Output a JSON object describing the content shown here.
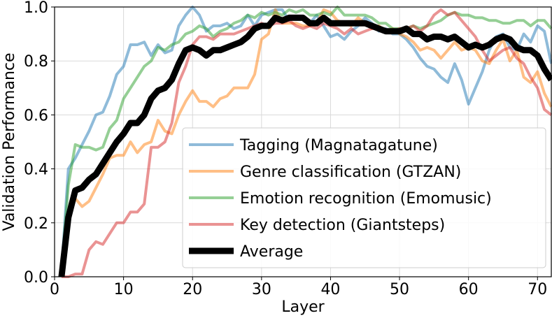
{
  "chart_data": {
    "type": "line",
    "title": "",
    "xlabel": "Layer",
    "ylabel": "Validation Performance",
    "xlim": [
      0,
      72
    ],
    "ylim": [
      0.0,
      1.0
    ],
    "xticks": [
      0,
      10,
      20,
      30,
      40,
      50,
      60,
      70
    ],
    "yticks": [
      0.0,
      0.2,
      0.4,
      0.6,
      0.8,
      1.0
    ],
    "xtick_labels": [
      "0",
      "10",
      "20",
      "30",
      "40",
      "50",
      "60",
      "70"
    ],
    "ytick_labels": [
      "0.0",
      "0.2",
      "0.4",
      "0.6",
      "0.8",
      "1.0"
    ],
    "grid": true,
    "legend_position": "lower-right",
    "x": [
      1,
      2,
      3,
      4,
      5,
      6,
      7,
      8,
      9,
      10,
      11,
      12,
      13,
      14,
      15,
      16,
      17,
      18,
      19,
      20,
      21,
      22,
      23,
      24,
      25,
      26,
      27,
      28,
      29,
      30,
      31,
      32,
      33,
      34,
      35,
      36,
      37,
      38,
      39,
      40,
      41,
      42,
      43,
      44,
      45,
      46,
      47,
      48,
      49,
      50,
      51,
      52,
      53,
      54,
      55,
      56,
      57,
      58,
      59,
      60,
      61,
      62,
      63,
      64,
      65,
      66,
      67,
      68,
      69,
      70,
      71,
      72
    ],
    "series": [
      {
        "name": "Tagging (Magnatagatune)",
        "color": "#1f77b4",
        "opacity": 0.5,
        "width": 4,
        "values": [
          0.02,
          0.4,
          0.44,
          0.49,
          0.54,
          0.6,
          0.61,
          0.67,
          0.75,
          0.78,
          0.86,
          0.86,
          0.87,
          0.82,
          0.86,
          0.83,
          0.84,
          0.93,
          0.97,
          1.0,
          0.97,
          0.91,
          0.93,
          0.93,
          0.94,
          0.92,
          0.93,
          0.97,
          0.93,
          0.97,
          0.98,
          0.99,
          0.99,
          0.95,
          0.96,
          0.96,
          0.94,
          0.97,
          0.93,
          0.89,
          0.9,
          0.88,
          0.91,
          0.93,
          0.96,
          0.94,
          0.91,
          0.92,
          0.9,
          0.9,
          0.88,
          0.85,
          0.81,
          0.78,
          0.77,
          0.74,
          0.72,
          0.79,
          0.73,
          0.64,
          0.7,
          0.76,
          0.84,
          0.89,
          0.9,
          0.85,
          0.84,
          0.9,
          0.87,
          0.93,
          0.91,
          0.79
        ]
      },
      {
        "name": "Genre classification (GTZAN)",
        "color": "#ff7f0e",
        "opacity": 0.5,
        "width": 4,
        "values": [
          0.02,
          0.22,
          0.29,
          0.26,
          0.28,
          0.33,
          0.38,
          0.44,
          0.45,
          0.45,
          0.5,
          0.46,
          0.49,
          0.5,
          0.58,
          0.54,
          0.53,
          0.6,
          0.65,
          0.69,
          0.65,
          0.65,
          0.63,
          0.66,
          0.67,
          0.7,
          0.7,
          0.7,
          0.75,
          0.88,
          0.9,
          0.99,
          0.94,
          0.94,
          0.94,
          0.93,
          0.93,
          0.94,
          0.99,
          0.98,
          0.95,
          0.94,
          0.93,
          0.96,
          0.94,
          0.92,
          0.93,
          0.91,
          0.92,
          0.9,
          0.89,
          0.87,
          0.84,
          0.85,
          0.84,
          0.81,
          0.84,
          0.87,
          0.84,
          0.85,
          0.84,
          0.8,
          0.79,
          0.84,
          0.88,
          0.8,
          0.84,
          0.74,
          0.72,
          0.76,
          0.68,
          0.63
        ]
      },
      {
        "name": "Emotion recognition (Emomusic)",
        "color": "#2ca02c",
        "opacity": 0.5,
        "width": 4,
        "values": [
          0.02,
          0.34,
          0.49,
          0.48,
          0.48,
          0.47,
          0.48,
          0.55,
          0.58,
          0.66,
          0.7,
          0.74,
          0.78,
          0.8,
          0.85,
          0.84,
          0.86,
          0.87,
          0.9,
          0.91,
          0.93,
          0.92,
          0.89,
          0.91,
          0.92,
          0.94,
          0.95,
          0.97,
          0.96,
          0.98,
          0.97,
          0.98,
          0.97,
          0.99,
          0.98,
          0.99,
          0.97,
          0.97,
          0.98,
          0.97,
          1.0,
          0.97,
          0.97,
          0.97,
          0.97,
          0.96,
          0.94,
          0.94,
          0.92,
          0.92,
          0.92,
          0.93,
          0.92,
          0.93,
          0.94,
          0.95,
          0.97,
          0.98,
          0.97,
          0.97,
          0.96,
          0.96,
          0.95,
          0.95,
          0.94,
          0.94,
          0.95,
          0.95,
          0.93,
          0.95,
          0.95,
          0.92
        ]
      },
      {
        "name": "Key detection (Giantsteps)",
        "color": "#d62728",
        "opacity": 0.5,
        "width": 4,
        "values": [
          0.0,
          0.0,
          0.01,
          0.01,
          0.1,
          0.13,
          0.12,
          0.16,
          0.2,
          0.2,
          0.24,
          0.24,
          0.27,
          0.48,
          0.48,
          0.5,
          0.57,
          0.72,
          0.78,
          0.86,
          0.89,
          0.89,
          0.88,
          0.9,
          0.9,
          0.9,
          0.91,
          0.92,
          0.93,
          0.94,
          0.93,
          0.94,
          0.94,
          0.95,
          0.93,
          0.92,
          0.93,
          0.92,
          0.94,
          0.93,
          0.92,
          0.9,
          0.92,
          0.9,
          0.91,
          0.92,
          0.92,
          0.91,
          0.91,
          0.92,
          0.92,
          0.93,
          0.91,
          0.93,
          0.97,
          0.99,
          0.97,
          0.98,
          0.95,
          0.92,
          0.89,
          0.84,
          0.8,
          0.82,
          0.84,
          0.85,
          0.81,
          0.79,
          0.74,
          0.7,
          0.62,
          0.6
        ]
      },
      {
        "name": "Average",
        "color": "#000000",
        "opacity": 1,
        "width": 9,
        "values": [
          0.0,
          0.22,
          0.32,
          0.33,
          0.36,
          0.38,
          0.42,
          0.46,
          0.5,
          0.53,
          0.57,
          0.57,
          0.6,
          0.66,
          0.69,
          0.7,
          0.73,
          0.79,
          0.84,
          0.85,
          0.84,
          0.82,
          0.84,
          0.84,
          0.85,
          0.86,
          0.87,
          0.89,
          0.92,
          0.93,
          0.93,
          0.96,
          0.95,
          0.96,
          0.96,
          0.96,
          0.94,
          0.94,
          0.96,
          0.94,
          0.94,
          0.94,
          0.94,
          0.94,
          0.94,
          0.93,
          0.92,
          0.91,
          0.91,
          0.91,
          0.92,
          0.9,
          0.9,
          0.88,
          0.89,
          0.89,
          0.88,
          0.89,
          0.87,
          0.85,
          0.86,
          0.85,
          0.86,
          0.88,
          0.89,
          0.88,
          0.85,
          0.84,
          0.84,
          0.82,
          0.77,
          0.73
        ]
      }
    ]
  }
}
